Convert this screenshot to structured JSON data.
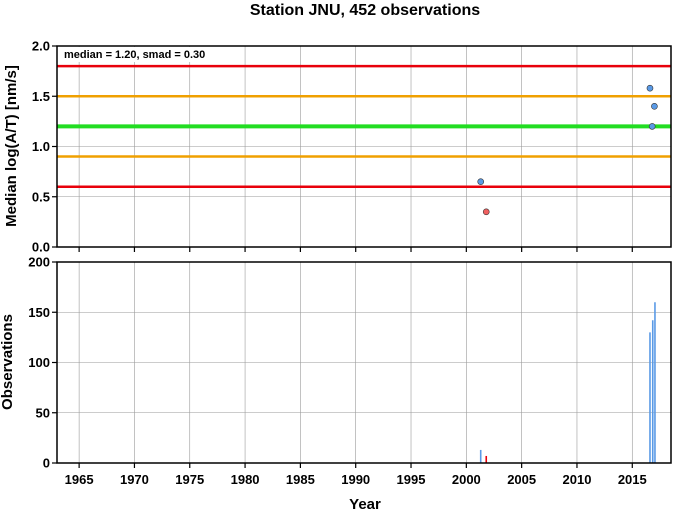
{
  "chart_data": [
    {
      "type": "scatter",
      "title": "Station JNU, 452 observations",
      "annotation": "median = 1.20, smad = 0.30",
      "ylabel": "Median log(A/T) [nm/s]",
      "xlim": [
        1963,
        2018.5
      ],
      "ylim": [
        0,
        2
      ],
      "y_ticks": [
        "0.0",
        "0.5",
        "1.0",
        "1.5",
        "2.0"
      ],
      "y_tick_values": [
        0,
        0.5,
        1.0,
        1.5,
        2.0
      ],
      "grid": true,
      "reference_lines": [
        {
          "y": 1.8,
          "color": "#e8000b"
        },
        {
          "y": 1.5,
          "color": "#f0a000"
        },
        {
          "y": 1.2,
          "color": "#22dd22"
        },
        {
          "y": 0.9,
          "color": "#f0a000"
        },
        {
          "y": 0.6,
          "color": "#e8000b"
        }
      ],
      "series": [
        {
          "color": "#5a9ae6",
          "x": [
            2001.3,
            2016.6,
            2017.0,
            2016.8
          ],
          "y": [
            0.65,
            1.58,
            1.4,
            1.2
          ]
        },
        {
          "color": "#f06060",
          "x": [
            2001.8
          ],
          "y": [
            0.35
          ]
        }
      ]
    },
    {
      "type": "bar",
      "xlabel": "Year",
      "ylabel": "Observations",
      "xlim": [
        1963,
        2018.5
      ],
      "ylim": [
        0,
        200
      ],
      "x_ticks": [
        "1965",
        "1970",
        "1975",
        "1980",
        "1985",
        "1990",
        "1995",
        "2000",
        "2005",
        "2010",
        "2015"
      ],
      "x_tick_values": [
        1965,
        1970,
        1975,
        1980,
        1985,
        1990,
        1995,
        2000,
        2005,
        2010,
        2015
      ],
      "y_ticks": [
        "0",
        "50",
        "100",
        "150",
        "200"
      ],
      "y_tick_values": [
        0,
        50,
        100,
        150,
        200
      ],
      "grid": true,
      "series": [
        {
          "color": "#5a9ae6",
          "x": [
            2001.3,
            2016.6,
            2016.85,
            2017.05
          ],
          "values": [
            13,
            130,
            142,
            160
          ]
        },
        {
          "color": "#e8000b",
          "x": [
            2001.8
          ],
          "values": [
            7
          ]
        }
      ]
    }
  ]
}
